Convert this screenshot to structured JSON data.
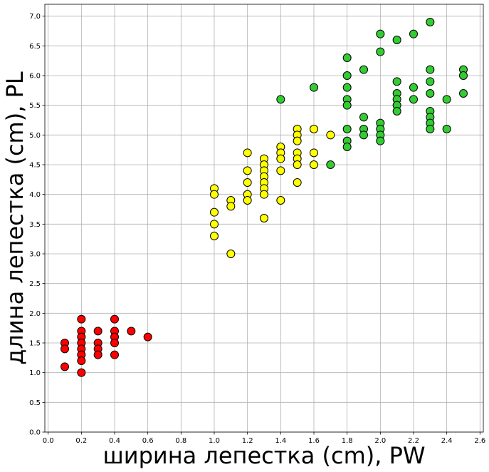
{
  "chart_data": {
    "type": "scatter",
    "title": "",
    "xlabel": "ширина лепестка (cm), PW",
    "ylabel": "длина лепестка (cm), PL",
    "xlim": [
      -0.02,
      2.62
    ],
    "ylim": [
      0.0,
      7.2
    ],
    "x_ticks": [
      "0.0",
      "0.2",
      "0.4",
      "0.6",
      "0.8",
      "1.0",
      "1.2",
      "1.4",
      "1.6",
      "1.8",
      "2.0",
      "2.2",
      "2.4",
      "2.6"
    ],
    "y_ticks": [
      "0.0",
      "0.5",
      "1.0",
      "1.5",
      "2.0",
      "2.5",
      "3.0",
      "3.5",
      "4.0",
      "4.5",
      "5.0",
      "5.5",
      "6.0",
      "6.5",
      "7.0"
    ],
    "grid": true,
    "legend": "none",
    "series": [
      {
        "color": "#ff0000",
        "points": [
          [
            0.1,
            1.5
          ],
          [
            0.1,
            1.4
          ],
          [
            0.1,
            1.1
          ],
          [
            0.2,
            1.9
          ],
          [
            0.2,
            1.7
          ],
          [
            0.2,
            1.6
          ],
          [
            0.2,
            1.5
          ],
          [
            0.2,
            1.4
          ],
          [
            0.2,
            1.3
          ],
          [
            0.2,
            1.2
          ],
          [
            0.2,
            1.0
          ],
          [
            0.3,
            1.7
          ],
          [
            0.3,
            1.5
          ],
          [
            0.3,
            1.4
          ],
          [
            0.3,
            1.3
          ],
          [
            0.4,
            1.9
          ],
          [
            0.4,
            1.7
          ],
          [
            0.4,
            1.6
          ],
          [
            0.4,
            1.5
          ],
          [
            0.4,
            1.3
          ],
          [
            0.5,
            1.7
          ],
          [
            0.6,
            1.6
          ]
        ]
      },
      {
        "color": "#ffff00",
        "points": [
          [
            1.0,
            4.1
          ],
          [
            1.0,
            4.0
          ],
          [
            1.0,
            3.7
          ],
          [
            1.0,
            3.5
          ],
          [
            1.0,
            3.3
          ],
          [
            1.1,
            3.9
          ],
          [
            1.1,
            3.8
          ],
          [
            1.1,
            3.0
          ],
          [
            1.2,
            4.7
          ],
          [
            1.2,
            4.4
          ],
          [
            1.2,
            4.2
          ],
          [
            1.2,
            4.0
          ],
          [
            1.2,
            3.9
          ],
          [
            1.3,
            4.6
          ],
          [
            1.3,
            4.5
          ],
          [
            1.3,
            4.4
          ],
          [
            1.3,
            4.3
          ],
          [
            1.3,
            4.2
          ],
          [
            1.3,
            4.1
          ],
          [
            1.3,
            4.0
          ],
          [
            1.3,
            3.6
          ],
          [
            1.4,
            4.8
          ],
          [
            1.4,
            4.7
          ],
          [
            1.4,
            4.6
          ],
          [
            1.4,
            4.4
          ],
          [
            1.4,
            3.9
          ],
          [
            1.5,
            5.1
          ],
          [
            1.5,
            5.0
          ],
          [
            1.5,
            4.9
          ],
          [
            1.5,
            4.7
          ],
          [
            1.5,
            4.6
          ],
          [
            1.5,
            4.5
          ],
          [
            1.5,
            4.2
          ],
          [
            1.6,
            5.1
          ],
          [
            1.6,
            4.7
          ],
          [
            1.6,
            4.5
          ],
          [
            1.7,
            5.0
          ]
        ]
      },
      {
        "color": "#33cc33",
        "points": [
          [
            1.4,
            5.6
          ],
          [
            1.6,
            5.8
          ],
          [
            1.7,
            4.5
          ],
          [
            1.8,
            6.3
          ],
          [
            1.8,
            6.0
          ],
          [
            1.8,
            5.8
          ],
          [
            1.8,
            5.6
          ],
          [
            1.8,
            5.5
          ],
          [
            1.8,
            5.1
          ],
          [
            1.8,
            4.9
          ],
          [
            1.8,
            4.8
          ],
          [
            1.9,
            6.1
          ],
          [
            1.9,
            5.3
          ],
          [
            1.9,
            5.1
          ],
          [
            1.9,
            5.0
          ],
          [
            2.0,
            6.7
          ],
          [
            2.0,
            6.4
          ],
          [
            2.0,
            5.2
          ],
          [
            2.0,
            5.1
          ],
          [
            2.0,
            5.0
          ],
          [
            2.0,
            4.9
          ],
          [
            2.1,
            6.6
          ],
          [
            2.1,
            5.9
          ],
          [
            2.1,
            5.7
          ],
          [
            2.1,
            5.6
          ],
          [
            2.1,
            5.5
          ],
          [
            2.1,
            5.4
          ],
          [
            2.2,
            6.7
          ],
          [
            2.2,
            5.8
          ],
          [
            2.2,
            5.6
          ],
          [
            2.3,
            6.9
          ],
          [
            2.3,
            6.1
          ],
          [
            2.3,
            5.9
          ],
          [
            2.3,
            5.7
          ],
          [
            2.3,
            5.4
          ],
          [
            2.3,
            5.3
          ],
          [
            2.3,
            5.2
          ],
          [
            2.3,
            5.1
          ],
          [
            2.4,
            5.6
          ],
          [
            2.4,
            5.1
          ],
          [
            2.5,
            6.1
          ],
          [
            2.5,
            6.0
          ],
          [
            2.5,
            5.7
          ]
        ]
      }
    ]
  }
}
